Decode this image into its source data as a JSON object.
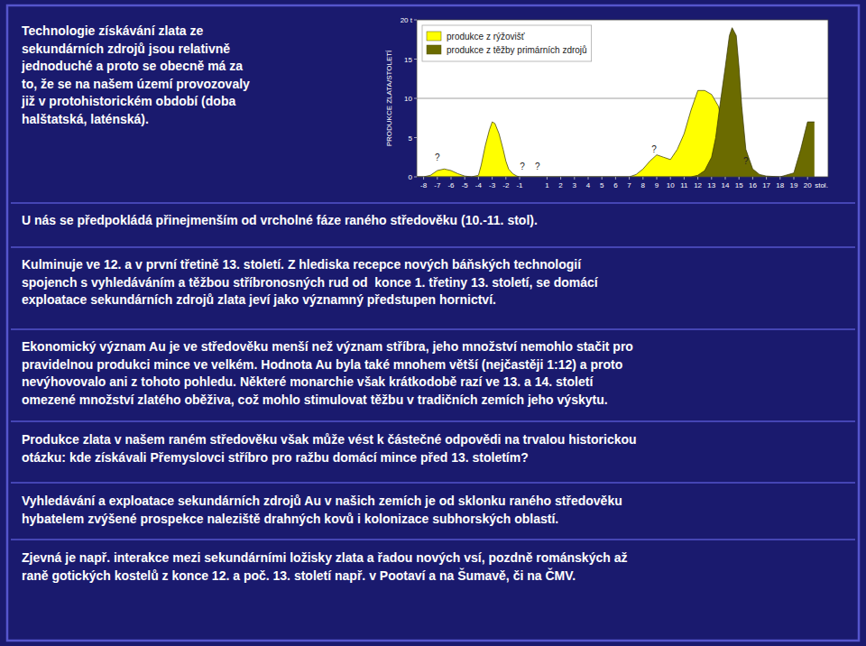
{
  "chart_data": {
    "type": "area",
    "ylabel": "PRODUKCE ZLATA/STOLETÍ",
    "xlabel": "stol.",
    "series": [
      {
        "name": "produkce z rýžovišť",
        "color": "#ffff00",
        "x": [
          -8.5,
          -8,
          -7.5,
          -7,
          -6.5,
          -6,
          -5.5,
          -5,
          -4.5,
          -4,
          -3.8,
          -3.5,
          -3.2,
          -3,
          -2.8,
          -2.5,
          -2.2,
          -2,
          -1.8,
          -1.5,
          -1.2,
          -1,
          -0.5,
          0,
          0.5,
          1,
          2,
          3,
          4,
          5,
          6,
          7,
          7.5,
          8,
          8.5,
          9,
          9.5,
          10,
          10.5,
          11,
          11.5,
          12,
          12.5,
          13,
          13.5,
          14,
          14.5,
          15,
          15.5,
          16,
          17,
          18,
          19,
          20,
          20.5
        ],
        "values": [
          0,
          0,
          0.2,
          0.8,
          1.0,
          0.8,
          0.4,
          0.1,
          0,
          0.2,
          1.5,
          4.0,
          6.0,
          7.0,
          6.8,
          5.5,
          3.5,
          2.0,
          1.0,
          0.4,
          0.1,
          0,
          0,
          0,
          0,
          0,
          0,
          0,
          0,
          0,
          0,
          0,
          0.3,
          1.0,
          2.0,
          2.8,
          2.5,
          2.2,
          3.5,
          5.5,
          8.5,
          11.0,
          11.0,
          10.5,
          9.0,
          5.5,
          2.5,
          1.2,
          0.5,
          0.2,
          0,
          0,
          0,
          0,
          0
        ]
      },
      {
        "name": "produkce z těžby primárních zdrojů",
        "color": "#6b6b00",
        "x": [
          -8.5,
          11,
          11.5,
          12,
          12.5,
          13,
          13.3,
          13.6,
          14.0,
          14.3,
          14.5,
          14.8,
          15.0,
          15.2,
          15.5,
          16.0,
          16.5,
          17.0,
          18.0,
          19.0,
          19.5,
          20.0,
          20.5
        ],
        "values": [
          0,
          0,
          0,
          0.2,
          0.8,
          2.5,
          5.0,
          9.0,
          14.0,
          18.0,
          19.0,
          18.0,
          14.0,
          9.0,
          3.5,
          1.0,
          0.3,
          0.1,
          0,
          0.5,
          3.5,
          7.0,
          7.0
        ]
      }
    ],
    "annotations": [
      {
        "text": "?",
        "x": -7.0,
        "y": 2.0
      },
      {
        "text": "?",
        "x": -0.8,
        "y": 0.8
      },
      {
        "text": "?",
        "x": 0.3,
        "y": 0.8
      },
      {
        "text": "?",
        "x": 8.8,
        "y": 3.0
      },
      {
        "text": "?",
        "x": 15.5,
        "y": 1.5
      }
    ],
    "hlines": [
      10
    ],
    "xlim": [
      -8.5,
      21.5
    ],
    "ylim": [
      0,
      20
    ],
    "xticks": [
      -8,
      -7,
      -6,
      -5,
      -4,
      -3,
      -2,
      -1,
      1,
      2,
      3,
      4,
      5,
      6,
      7,
      8,
      9,
      10,
      11,
      12,
      13,
      14,
      15,
      16,
      17,
      18,
      19,
      20
    ],
    "yticks": [
      0,
      5,
      10,
      15,
      {
        "value": 20,
        "label": "20 t"
      }
    ],
    "legend": "upper left"
  },
  "slide_texts": [
    "Technologie získávání zlata ze\nsekundárních zdrojů jsou relativně\njednoduché a proto se obecně má za\nto, že se na našem území provozovaly\njiž v protohistorickém období (doba\nhalštatská, laténská).",
    "U nás se předpokládá přinejmenším od vrcholné fáze raného středověku (10.-11. stol).",
    "Kulminuje ve 12. a v první třetině 13. století. Z hlediska recepce nových báňských technologií\nspojench s vyhledáváním a těžbou stříbronosných rud od  konce 1. třetiny 13. století, se domácí\nexploatace sekundárních zdrojů zlata jeví jako významný předstupen hornictví.",
    "Ekonomický význam Au je ve středověku menší než význam stříbra, jeho množství nemohlo stačit pro\npravidelnou produkci mince ve velkém. Hodnota Au byla také mnohem větší (nejčastěji 1:12) a proto\nnevýhovovalo ani z tohoto pohledu. Některé monarchie však krátkodobě razí ve 13. a 14. století\nomezené množství zlatého oběživa, což mohlo stimulovat těžbu v tradičních zemích jeho výskytu.",
    "Produkce zlata v našem raném středověku však může vést k částečné odpovědi na trvalou historickou\notázku: kde získávali Přemyslovci stříbro pro ražbu domácí mince před 13. stoletím?",
    "Vyhledávání a exploatace sekundárních zdrojů Au v našich zemích je od sklonku raného středověku\nhybatelem zvýšené prospekce naleziště drahných kovů i kolonizace subhorských oblastí.",
    "Zjevná je např. interakce mezi sekundárními ložisky zlata a řadou nových vsí, pozdně románských až\nraně gotických kostelů z konce 12. a poč. 13. století např. v Pootaví a na Šumavě, či na ČMV."
  ]
}
